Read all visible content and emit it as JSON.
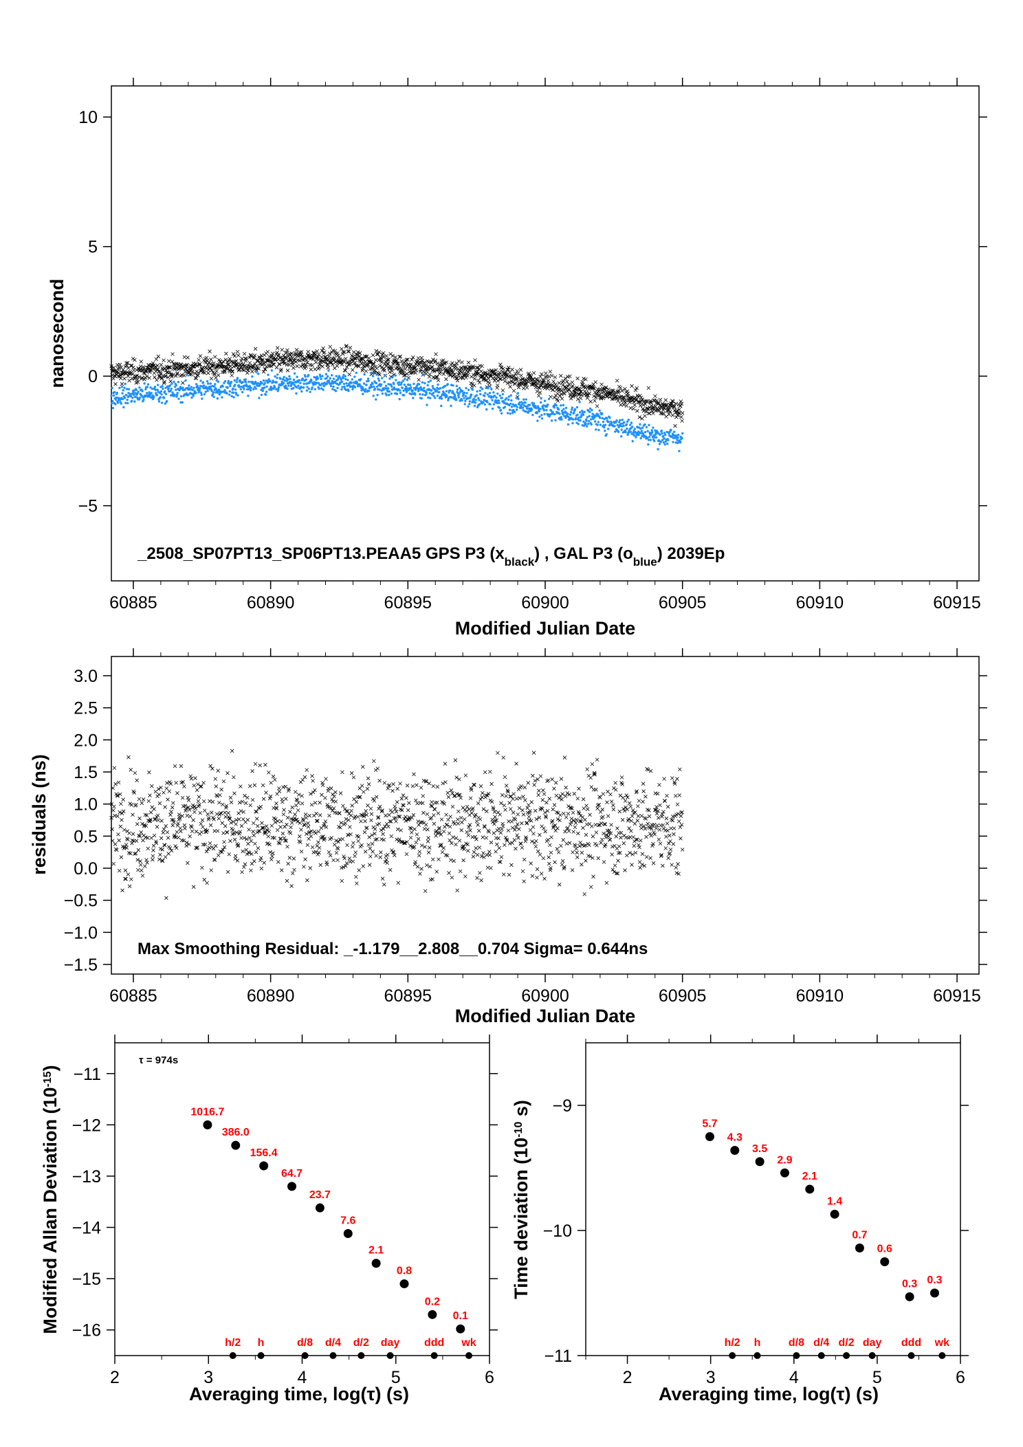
{
  "chart_data": [
    {
      "type": "scatter",
      "xlabel": "Modified Julian Date",
      "ylabel": "nanosecond",
      "xlim": [
        60884.2,
        60915.8
      ],
      "ylim": [
        -7.9,
        11.2
      ],
      "x_ticks": [
        "60885",
        "60890",
        "60895",
        "60900",
        "60905",
        "60910",
        "60915"
      ],
      "y_ticks": [
        "10",
        "5",
        "0",
        "−5"
      ],
      "title_parts": {
        "main": "_2508_SP07PT13_SP06PT13.PEAA5     GPS P3 (x",
        "sub1": "black",
        "mid": ") ,  GAL P3 (o",
        "sub2": "blue",
        "end": ")  2039Ep"
      },
      "series": [
        {
          "marker": "x",
          "color": "#000000",
          "x_range": [
            60884.2,
            60905.0
          ],
          "trend": [
            [
              60884.2,
              0.1
            ],
            [
              60887,
              0.3
            ],
            [
              60890,
              0.55
            ],
            [
              60892,
              0.7
            ],
            [
              60894,
              0.5
            ],
            [
              60896,
              0.3
            ],
            [
              60898,
              0.05
            ],
            [
              60900,
              -0.3
            ],
            [
              60902,
              -0.6
            ],
            [
              60904,
              -1.2
            ],
            [
              60905,
              -1.3
            ]
          ],
          "spread": 0.55
        },
        {
          "marker": "o",
          "color": "#1e90ff",
          "x_range": [
            60884.2,
            60905.0
          ],
          "trend": [
            [
              60884.2,
              -0.8
            ],
            [
              60887,
              -0.55
            ],
            [
              60890,
              -0.3
            ],
            [
              60892,
              -0.2
            ],
            [
              60894,
              -0.4
            ],
            [
              60896,
              -0.6
            ],
            [
              60898,
              -0.9
            ],
            [
              60900,
              -1.3
            ],
            [
              60902,
              -1.7
            ],
            [
              60904,
              -2.3
            ],
            [
              60905,
              -2.4
            ]
          ],
          "spread": 0.5
        }
      ]
    },
    {
      "type": "scatter",
      "xlabel": "Modified Julian Date",
      "ylabel": "residuals (ns)",
      "xlim": [
        60884.2,
        60915.8
      ],
      "ylim": [
        -1.65,
        3.3
      ],
      "x_ticks": [
        "60885",
        "60890",
        "60895",
        "60900",
        "60905",
        "60910",
        "60915"
      ],
      "y_ticks": [
        "3.0",
        "2.5",
        "2.0",
        "1.5",
        "1.0",
        "0.5",
        "0.0",
        "−0.5",
        "−1.0",
        "−1.5"
      ],
      "annotation": "Max Smoothing Residual: _-1.179__2.808__0.704  Sigma= 0.644ns",
      "series": [
        {
          "marker": "x",
          "color": "#000000",
          "x_range": [
            60884.2,
            60905.0
          ],
          "center": 0.7,
          "sigma": 0.644,
          "min": -1.179,
          "max": 2.808
        }
      ]
    },
    {
      "type": "scatter",
      "xlabel": "Averaging time, log(τ) (s)",
      "ylabel": "Modified Allan Deviation (10",
      "ylabel_sup": "-15",
      "ylabel_end": ")",
      "xlim": [
        2,
        6
      ],
      "ylim": [
        -16.5,
        -10.4
      ],
      "x_ticks": [
        "2",
        "3",
        "4",
        "5",
        "6"
      ],
      "y_ticks": [
        "−11",
        "−12",
        "−13",
        "−14",
        "−15",
        "−16"
      ],
      "tau_note": "τ = 974s",
      "points": [
        {
          "x": 2.99,
          "y": -12.0,
          "label": "1016.7"
        },
        {
          "x": 3.29,
          "y": -12.4,
          "label": "386.0"
        },
        {
          "x": 3.59,
          "y": -12.8,
          "label": "156.4"
        },
        {
          "x": 3.89,
          "y": -13.2,
          "label": "64.7"
        },
        {
          "x": 4.19,
          "y": -13.62,
          "label": "23.7"
        },
        {
          "x": 4.49,
          "y": -14.12,
          "label": "7.6"
        },
        {
          "x": 4.79,
          "y": -14.7,
          "label": "2.1"
        },
        {
          "x": 5.09,
          "y": -15.1,
          "label": "0.8"
        },
        {
          "x": 5.39,
          "y": -15.7,
          "label": "0.2"
        },
        {
          "x": 5.69,
          "y": -15.98,
          "label": "0.1"
        }
      ],
      "markers": [
        {
          "x": 3.26,
          "label": "h/2"
        },
        {
          "x": 3.56,
          "label": "h"
        },
        {
          "x": 4.03,
          "label": "d/8"
        },
        {
          "x": 4.33,
          "label": "d/4"
        },
        {
          "x": 4.63,
          "label": "d/2"
        },
        {
          "x": 4.94,
          "label": "day"
        },
        {
          "x": 5.41,
          "label": "ddd"
        },
        {
          "x": 5.78,
          "label": "wk"
        }
      ]
    },
    {
      "type": "scatter",
      "xlabel": "Averaging time, log(τ) (s)",
      "ylabel": "Time deviation (10",
      "ylabel_sup": "-10",
      "ylabel_end": " s)",
      "xlim": [
        1.5,
        6
      ],
      "ylim": [
        -11.0,
        -8.5
      ],
      "x_ticks": [
        "2",
        "3",
        "4",
        "5",
        "6"
      ],
      "y_ticks": [
        "−9",
        "−10",
        "−11"
      ],
      "points": [
        {
          "x": 2.99,
          "y": -9.25,
          "label": "5.7"
        },
        {
          "x": 3.29,
          "y": -9.36,
          "label": "4.3"
        },
        {
          "x": 3.59,
          "y": -9.45,
          "label": "3.5"
        },
        {
          "x": 3.89,
          "y": -9.54,
          "label": "2.9"
        },
        {
          "x": 4.19,
          "y": -9.67,
          "label": "2.1"
        },
        {
          "x": 4.49,
          "y": -9.87,
          "label": "1.4"
        },
        {
          "x": 4.79,
          "y": -10.14,
          "label": "0.7"
        },
        {
          "x": 5.09,
          "y": -10.25,
          "label": "0.6"
        },
        {
          "x": 5.39,
          "y": -10.53,
          "label": "0.3"
        },
        {
          "x": 5.69,
          "y": -10.5,
          "label": "0.3"
        }
      ],
      "markers": [
        {
          "x": 3.26,
          "label": "h/2"
        },
        {
          "x": 3.56,
          "label": "h"
        },
        {
          "x": 4.03,
          "label": "d/8"
        },
        {
          "x": 4.33,
          "label": "d/4"
        },
        {
          "x": 4.63,
          "label": "d/2"
        },
        {
          "x": 4.94,
          "label": "day"
        },
        {
          "x": 5.41,
          "label": "ddd"
        },
        {
          "x": 5.78,
          "label": "wk"
        }
      ]
    }
  ]
}
